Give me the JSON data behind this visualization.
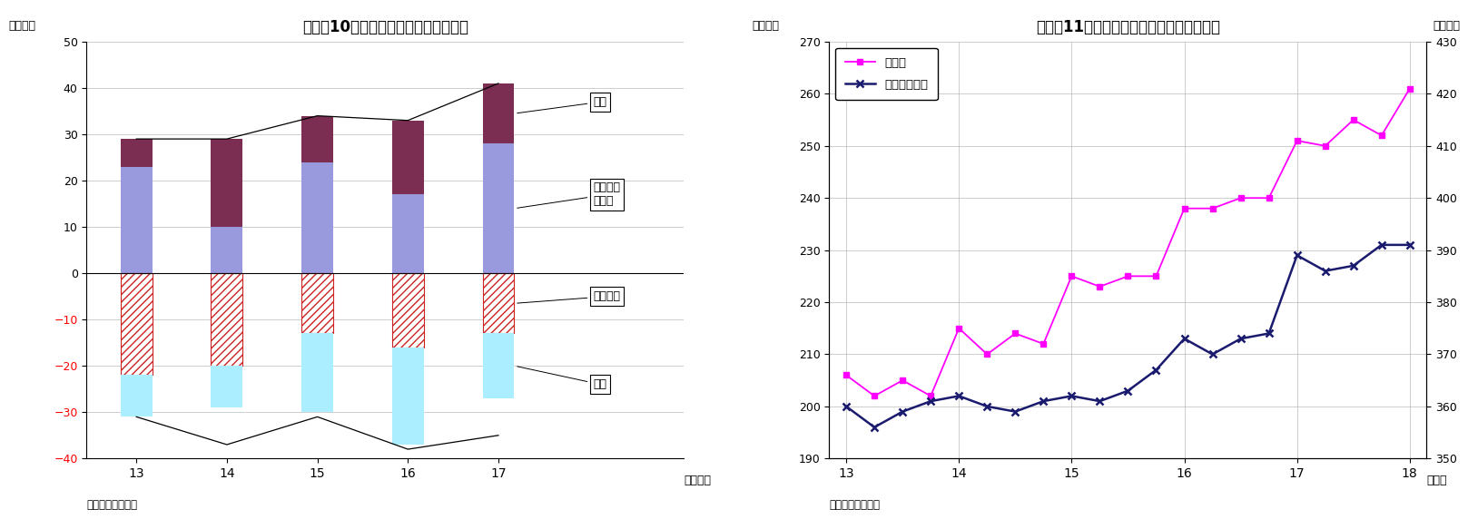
{
  "chart1": {
    "title": "（図表10）部門別資金過不足（年度）",
    "years": [
      13,
      14,
      15,
      16,
      17
    ],
    "ylabel": "（兆円）",
    "xlabel": "（年度）",
    "source": "（資料）日本銀行",
    "ylim": [
      -40,
      50
    ],
    "yticks": [
      -40,
      -30,
      -20,
      -10,
      0,
      10,
      20,
      30,
      40,
      50
    ],
    "private_corp_vals": [
      23,
      10,
      24,
      17,
      28
    ],
    "household_vals": [
      6,
      19,
      10,
      16,
      13
    ],
    "govt_vals": [
      -22,
      -20,
      -13,
      -16,
      -13
    ],
    "overseas_vals": [
      -9,
      -9,
      -17,
      -21,
      -14
    ],
    "line_total": [
      29,
      29,
      34,
      33,
      41
    ],
    "line_bottom": [
      -31,
      -37,
      -31,
      -38,
      -35
    ],
    "bar_width": 0.35,
    "color_private": "#9999DD",
    "color_household": "#7B2D52",
    "color_govt_edge": "#CC2222",
    "color_overseas": "#AAEEFF",
    "label_household": "家計",
    "label_private": "民間非金\n融法人",
    "label_govt": "一般政府",
    "label_overseas": "海外"
  },
  "chart2": {
    "title": "（図表11）民間非金融法人の現預金・借入",
    "ylabel_left": "（兆円）",
    "ylabel_right": "（兆円）",
    "xlabel": "（年）",
    "source": "（資料）日本銀行",
    "ylim_left": [
      190,
      270
    ],
    "ylim_right": [
      350,
      430
    ],
    "yticks_left": [
      190,
      200,
      210,
      220,
      230,
      240,
      250,
      260,
      270
    ],
    "yticks_right": [
      350,
      360,
      370,
      380,
      390,
      400,
      410,
      420,
      430
    ],
    "x_labels": [
      "13",
      "14",
      "15",
      "16",
      "17",
      "18"
    ],
    "cash_x": [
      13.0,
      13.25,
      13.5,
      13.75,
      14.0,
      14.25,
      14.5,
      14.75,
      15.0,
      15.25,
      15.5,
      15.75,
      16.0,
      16.25,
      16.5,
      16.75,
      17.0,
      17.25,
      17.5,
      17.75,
      18.0
    ],
    "cash_y": [
      206,
      202,
      205,
      202,
      215,
      210,
      214,
      212,
      225,
      223,
      225,
      225,
      238,
      238,
      240,
      240,
      251,
      250,
      255,
      252,
      261
    ],
    "borrow_x": [
      13.0,
      13.25,
      13.5,
      13.75,
      14.0,
      14.25,
      14.5,
      14.75,
      15.0,
      15.25,
      15.5,
      15.75,
      16.0,
      16.25,
      16.5,
      16.75,
      17.0,
      17.25,
      17.5,
      17.75,
      18.0
    ],
    "borrow_y": [
      360,
      356,
      359,
      361,
      362,
      360,
      359,
      361,
      362,
      361,
      363,
      367,
      373,
      370,
      373,
      374,
      389,
      386,
      387,
      391,
      391
    ],
    "cash_label": "現預金",
    "borrow_label": "借入（右軸）",
    "cash_color": "#FF00FF",
    "borrow_color": "#1A1A6E"
  }
}
